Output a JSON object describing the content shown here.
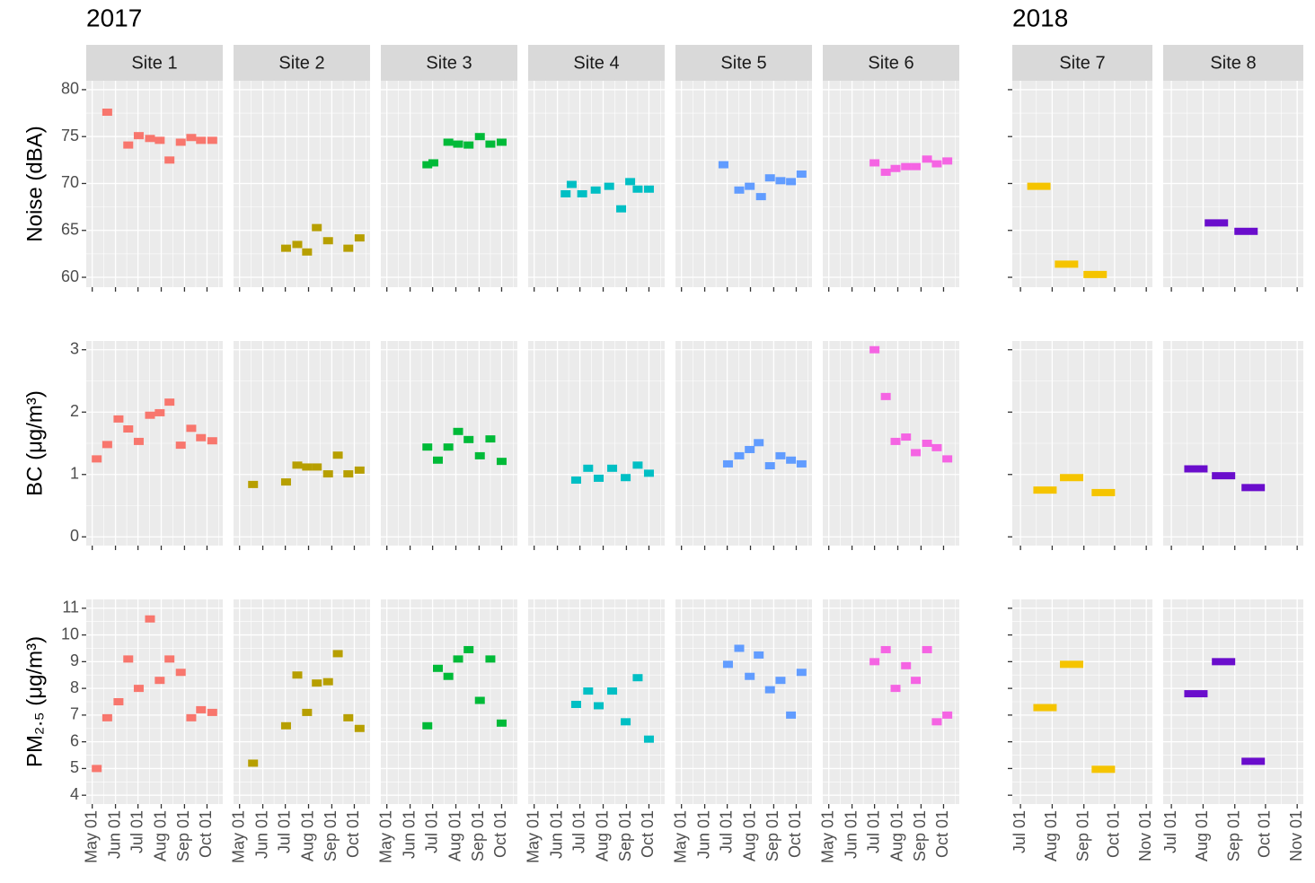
{
  "chart_data": {
    "type": "facet-segments",
    "rows": [
      {
        "ylabel": "Noise (dBA)",
        "ylim": [
          58.95,
          80.95
        ],
        "yticks": [
          60,
          65,
          70,
          75,
          80
        ]
      },
      {
        "ylabel": "BC (μg/m³)",
        "ylim": [
          -0.14,
          3.14
        ],
        "yticks": [
          0,
          1,
          2,
          3
        ]
      },
      {
        "ylabel": "PM₂.₅ (μg/m³)",
        "ylim": [
          3.67,
          11.33
        ],
        "yticks": [
          4,
          5,
          6,
          7,
          8,
          9,
          10,
          11
        ]
      }
    ],
    "groups": [
      {
        "title": "2017",
        "xlim": [
          "2017-04-23",
          "2017-10-22"
        ],
        "xticks": [
          {
            "value": "2017-05-01",
            "label": "May 01"
          },
          {
            "value": "2017-06-01",
            "label": "Jun 01"
          },
          {
            "value": "2017-07-01",
            "label": "Jul 01"
          },
          {
            "value": "2017-08-01",
            "label": "Aug 01"
          },
          {
            "value": "2017-09-01",
            "label": "Sep 01"
          },
          {
            "value": "2017-10-01",
            "label": "Oct 01"
          }
        ],
        "sites": [
          {
            "name": "Site 1",
            "color": "#f8766d",
            "series": [
              {
                "x": [
                  "2017-05-21",
                  "2017-06-18",
                  "2017-07-02",
                  "2017-07-17",
                  "2017-07-30",
                  "2017-08-12",
                  "2017-08-27",
                  "2017-09-10",
                  "2017-09-23",
                  "2017-10-08"
                ],
                "values": [
                  77.6,
                  74.1,
                  75.1,
                  74.8,
                  74.6,
                  72.5,
                  74.4,
                  74.9,
                  74.6,
                  74.6
                ]
              },
              {
                "x": [
                  "2017-05-07",
                  "2017-05-21",
                  "2017-06-05",
                  "2017-06-18",
                  "2017-07-02",
                  "2017-07-17",
                  "2017-07-30",
                  "2017-08-12",
                  "2017-08-27",
                  "2017-09-10",
                  "2017-09-23",
                  "2017-10-08"
                ],
                "values": [
                  1.25,
                  1.48,
                  1.89,
                  1.73,
                  1.53,
                  1.95,
                  1.99,
                  2.16,
                  1.47,
                  1.74,
                  1.59,
                  1.54
                ]
              },
              {
                "x": [
                  "2017-05-07",
                  "2017-05-21",
                  "2017-06-05",
                  "2017-06-18",
                  "2017-07-02",
                  "2017-07-17",
                  "2017-07-30",
                  "2017-08-12",
                  "2017-08-27",
                  "2017-09-10",
                  "2017-09-23",
                  "2017-10-08"
                ],
                "values": [
                  5.0,
                  6.9,
                  7.5,
                  9.1,
                  8.0,
                  10.6,
                  8.3,
                  9.1,
                  8.6,
                  6.9,
                  7.2,
                  7.1
                ]
              }
            ]
          },
          {
            "name": "Site 2",
            "color": "#b79f00",
            "series": [
              {
                "x": [
                  "2017-07-02",
                  "2017-07-17",
                  "2017-07-30",
                  "2017-08-12",
                  "2017-08-27",
                  "2017-09-23",
                  "2017-10-08"
                ],
                "values": [
                  63.1,
                  63.5,
                  62.7,
                  65.3,
                  63.9,
                  63.1,
                  64.2
                ]
              },
              {
                "x": [
                  "2017-05-19",
                  "2017-07-02",
                  "2017-07-17",
                  "2017-07-30",
                  "2017-08-12",
                  "2017-08-27",
                  "2017-09-09",
                  "2017-09-23",
                  "2017-10-08"
                ],
                "values": [
                  0.84,
                  0.88,
                  1.15,
                  1.12,
                  1.12,
                  1.01,
                  1.31,
                  1.01,
                  1.07
                ]
              },
              {
                "x": [
                  "2017-05-19",
                  "2017-07-02",
                  "2017-07-17",
                  "2017-07-30",
                  "2017-08-12",
                  "2017-08-27",
                  "2017-09-09",
                  "2017-09-23",
                  "2017-10-08"
                ],
                "values": [
                  5.2,
                  6.6,
                  8.5,
                  7.1,
                  8.2,
                  8.25,
                  9.3,
                  6.9,
                  6.5
                ]
              }
            ]
          },
          {
            "name": "Site 3",
            "color": "#00ba38",
            "series": [
              {
                "x": [
                  "2017-06-24",
                  "2017-07-02",
                  "2017-07-22",
                  "2017-08-04",
                  "2017-08-18",
                  "2017-09-02",
                  "2017-09-16",
                  "2017-10-01"
                ],
                "values": [
                  72.0,
                  72.2,
                  74.4,
                  74.2,
                  74.1,
                  75.0,
                  74.2,
                  74.4
                ]
              },
              {
                "x": [
                  "2017-06-24",
                  "2017-07-08",
                  "2017-07-22",
                  "2017-08-04",
                  "2017-08-18",
                  "2017-09-02",
                  "2017-09-16",
                  "2017-10-01"
                ],
                "values": [
                  1.44,
                  1.23,
                  1.44,
                  1.69,
                  1.56,
                  1.3,
                  1.57,
                  1.21
                ]
              },
              {
                "x": [
                  "2017-06-24",
                  "2017-07-08",
                  "2017-07-22",
                  "2017-08-04",
                  "2017-08-18",
                  "2017-09-02",
                  "2017-09-16",
                  "2017-10-01"
                ],
                "values": [
                  6.6,
                  8.75,
                  8.45,
                  9.1,
                  9.45,
                  7.55,
                  9.1,
                  6.7
                ]
              }
            ]
          },
          {
            "name": "Site 4",
            "color": "#00bfc4",
            "series": [
              {
                "x": [
                  "2017-06-12",
                  "2017-06-20",
                  "2017-07-04",
                  "2017-07-22",
                  "2017-08-09",
                  "2017-08-25",
                  "2017-09-06",
                  "2017-09-16",
                  "2017-10-01"
                ],
                "values": [
                  68.9,
                  69.9,
                  68.9,
                  69.3,
                  69.7,
                  67.3,
                  70.2,
                  69.4,
                  69.4
                ]
              },
              {
                "x": [
                  "2017-06-26",
                  "2017-07-12",
                  "2017-07-26",
                  "2017-08-13",
                  "2017-08-31",
                  "2017-09-16",
                  "2017-10-01"
                ],
                "values": [
                  0.91,
                  1.1,
                  0.94,
                  1.1,
                  0.95,
                  1.15,
                  1.02
                ]
              },
              {
                "x": [
                  "2017-06-26",
                  "2017-07-12",
                  "2017-07-26",
                  "2017-08-13",
                  "2017-08-31",
                  "2017-09-16",
                  "2017-10-01"
                ],
                "values": [
                  7.4,
                  7.9,
                  7.35,
                  7.9,
                  6.75,
                  8.4,
                  6.1
                ]
              }
            ]
          },
          {
            "name": "Site 5",
            "color": "#619cff",
            "series": [
              {
                "x": [
                  "2017-06-26",
                  "2017-07-17",
                  "2017-07-31",
                  "2017-08-15",
                  "2017-08-27",
                  "2017-09-10",
                  "2017-09-24",
                  "2017-10-08"
                ],
                "values": [
                  72.0,
                  69.3,
                  69.7,
                  68.6,
                  70.6,
                  70.3,
                  70.2,
                  71.0
                ]
              },
              {
                "x": [
                  "2017-07-02",
                  "2017-07-17",
                  "2017-07-31",
                  "2017-08-12",
                  "2017-08-27",
                  "2017-09-10",
                  "2017-09-24",
                  "2017-10-08"
                ],
                "values": [
                  1.17,
                  1.3,
                  1.4,
                  1.51,
                  1.14,
                  1.3,
                  1.23,
                  1.17
                ]
              },
              {
                "x": [
                  "2017-07-02",
                  "2017-07-17",
                  "2017-07-31",
                  "2017-08-12",
                  "2017-08-27",
                  "2017-09-10",
                  "2017-09-24",
                  "2017-10-08"
                ],
                "values": [
                  8.9,
                  9.5,
                  8.45,
                  9.25,
                  7.95,
                  8.3,
                  7.0,
                  8.6
                ]
              }
            ]
          },
          {
            "name": "Site 6",
            "color": "#f564e3",
            "series": [
              {
                "x": [
                  "2017-07-01",
                  "2017-07-16",
                  "2017-07-29",
                  "2017-08-12",
                  "2017-08-25",
                  "2017-09-09",
                  "2017-09-22",
                  "2017-10-06"
                ],
                "values": [
                  72.2,
                  71.2,
                  71.6,
                  71.8,
                  71.8,
                  72.6,
                  72.1,
                  72.4
                ]
              },
              {
                "x": [
                  "2017-07-01",
                  "2017-07-16",
                  "2017-07-29",
                  "2017-08-12",
                  "2017-08-25",
                  "2017-09-09",
                  "2017-09-22",
                  "2017-10-06"
                ],
                "values": [
                  3.0,
                  2.25,
                  1.53,
                  1.6,
                  1.35,
                  1.5,
                  1.43,
                  1.25
                ]
              },
              {
                "x": [
                  "2017-07-01",
                  "2017-07-16",
                  "2017-07-29",
                  "2017-08-12",
                  "2017-08-25",
                  "2017-09-09",
                  "2017-09-22",
                  "2017-10-06"
                ],
                "values": [
                  9.0,
                  9.45,
                  8.0,
                  8.85,
                  8.3,
                  9.45,
                  6.75,
                  7.0
                ]
              }
            ]
          }
        ]
      },
      {
        "title": "2018",
        "xlim": [
          "2018-06-23",
          "2018-11-07"
        ],
        "xticks": [
          {
            "value": "2018-07-01",
            "label": "Jul 01"
          },
          {
            "value": "2018-08-01",
            "label": "Aug 01"
          },
          {
            "value": "2018-09-01",
            "label": "Sep 01"
          },
          {
            "value": "2018-10-01",
            "label": "Oct 01"
          },
          {
            "value": "2018-11-01",
            "label": "Nov 01"
          }
        ],
        "sites": [
          {
            "name": "Site 7",
            "color": "#f5c400",
            "series": [
              {
                "x": [
                  "2018-07-19",
                  "2018-08-15",
                  "2018-09-12"
                ],
                "values": [
                  69.7,
                  61.4,
                  60.3
                ]
              },
              {
                "x": [
                  "2018-07-25",
                  "2018-08-20",
                  "2018-09-20"
                ],
                "values": [
                  0.75,
                  0.95,
                  0.71
                ]
              },
              {
                "x": [
                  "2018-07-25",
                  "2018-08-20",
                  "2018-09-20"
                ],
                "values": [
                  7.28,
                  8.9,
                  4.97
                ]
              }
            ]
          },
          {
            "name": "Site 8",
            "color": "#6a0dcc",
            "series": [
              {
                "x": [
                  "2018-08-14",
                  "2018-09-12"
                ],
                "values": [
                  65.8,
                  64.9
                ]
              },
              {
                "x": [
                  "2018-07-25",
                  "2018-08-21",
                  "2018-09-19"
                ],
                "values": [
                  1.09,
                  0.98,
                  0.79
                ]
              },
              {
                "x": [
                  "2018-07-25",
                  "2018-08-21",
                  "2018-09-19"
                ],
                "values": [
                  7.8,
                  9.0,
                  5.27
                ]
              }
            ]
          }
        ]
      }
    ]
  }
}
